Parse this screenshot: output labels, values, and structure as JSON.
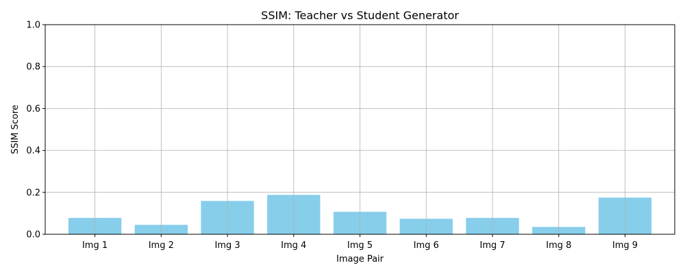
{
  "chart_data": {
    "type": "bar",
    "title": "SSIM: Teacher vs Student Generator",
    "xlabel": "Image Pair",
    "ylabel": "SSIM Score",
    "categories": [
      "Img 1",
      "Img 2",
      "Img 3",
      "Img 4",
      "Img 5",
      "Img 6",
      "Img 7",
      "Img 8",
      "Img 9"
    ],
    "values": [
      0.078,
      0.045,
      0.159,
      0.188,
      0.107,
      0.074,
      0.078,
      0.035,
      0.175
    ],
    "ylim": [
      0,
      1
    ],
    "yticks": [
      "0.0",
      "0.2",
      "0.4",
      "0.6",
      "0.8",
      "1.0"
    ],
    "grid": true,
    "bar_color": "#87ceeb",
    "grid_color": "#b0b0b0"
  }
}
